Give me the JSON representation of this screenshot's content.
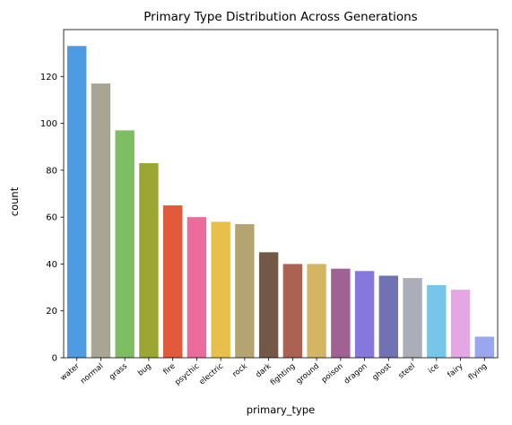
{
  "chart_data": {
    "type": "bar",
    "title": "Primary Type Distribution Across Generations",
    "xlabel": "primary_type",
    "ylabel": "count",
    "ylim": [
      0,
      140
    ],
    "yticks": [
      0,
      20,
      40,
      60,
      80,
      100,
      120
    ],
    "grid": false,
    "categories": [
      "water",
      "normal",
      "grass",
      "bug",
      "fire",
      "psychic",
      "electric",
      "rock",
      "dark",
      "fighting",
      "ground",
      "poison",
      "dragon",
      "ghost",
      "steel",
      "ice",
      "fairy",
      "flying"
    ],
    "values": [
      133,
      117,
      97,
      83,
      65,
      60,
      58,
      57,
      45,
      40,
      40,
      38,
      37,
      35,
      34,
      31,
      29,
      9
    ],
    "colors": [
      "#4d9be2",
      "#a8a595",
      "#7dbe62",
      "#9ba633",
      "#e05a3b",
      "#ea6b9c",
      "#e8bf4a",
      "#b4a470",
      "#735747",
      "#ab6253",
      "#d4b564",
      "#a06293",
      "#8577dd",
      "#7271b3",
      "#abadb8",
      "#77c5e8",
      "#e4a7e3",
      "#99a7ef"
    ]
  }
}
